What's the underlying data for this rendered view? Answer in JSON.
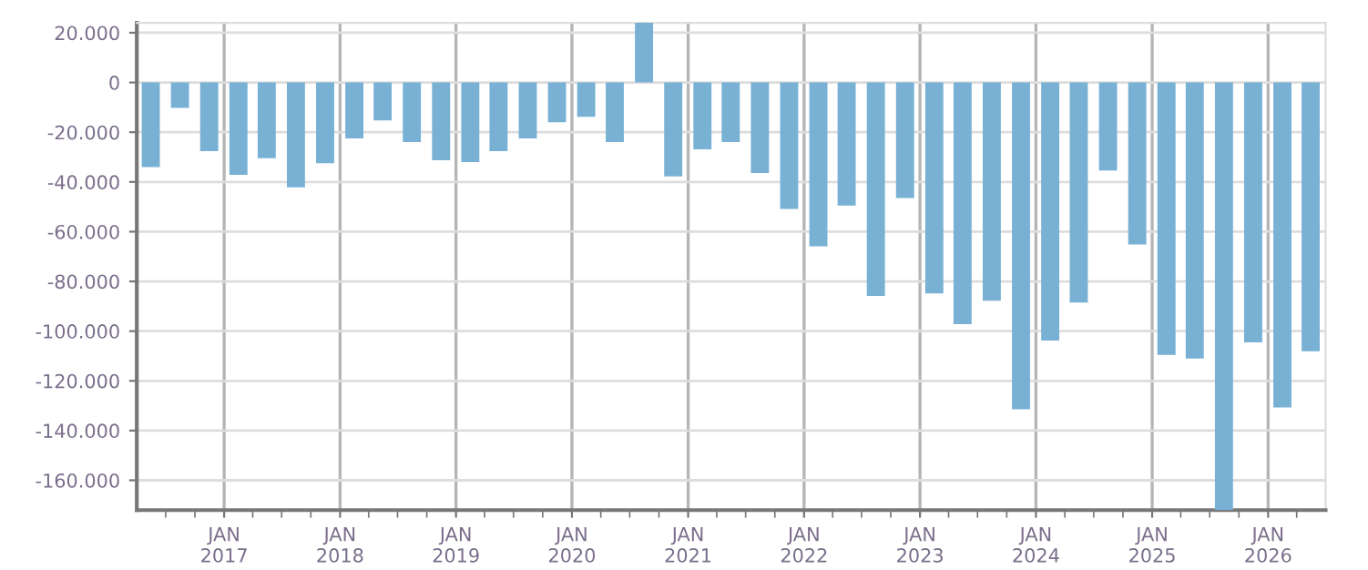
{
  "chart_data": {
    "type": "bar",
    "color": "#78b1d4",
    "x": [
      "2016-05-15",
      "2016-08-15",
      "2016-11-15",
      "2017-02-15",
      "2017-05-15",
      "2017-08-15",
      "2017-11-15",
      "2018-02-15",
      "2018-05-15",
      "2018-08-15",
      "2018-11-15",
      "2019-02-15",
      "2019-05-15",
      "2019-08-15",
      "2019-11-15",
      "2020-02-15",
      "2020-05-15",
      "2020-08-15",
      "2020-11-15",
      "2021-02-15",
      "2021-05-15",
      "2021-08-15",
      "2021-11-15",
      "2022-02-15",
      "2022-05-15",
      "2022-08-15",
      "2022-11-15",
      "2023-02-15",
      "2023-05-15",
      "2023-08-15",
      "2023-11-15",
      "2024-02-15",
      "2024-05-15",
      "2024-08-15",
      "2024-11-15",
      "2025-02-15",
      "2025-05-15",
      "2025-08-15",
      "2025-11-15",
      "2026-02-15",
      "2026-05-15"
    ],
    "values": [
      -34000,
      -10200,
      -27600,
      -37100,
      -30500,
      -42200,
      -32500,
      -22500,
      -15300,
      -24000,
      -31300,
      -32000,
      -27600,
      -22500,
      -16000,
      -13800,
      -24000,
      24000,
      -37800,
      -26900,
      -24000,
      -36400,
      -50900,
      -65900,
      -49500,
      -85800,
      -46500,
      -84800,
      -97200,
      -87800,
      -131400,
      -103800,
      -88500,
      -35400,
      -65200,
      -109600,
      -111000,
      -172000,
      -104500,
      -130700,
      -108100
    ],
    "xlim": [
      "2016-04-01",
      "2026-07-01"
    ],
    "xticks": [
      {
        "value": "2016-07-01",
        "label": null
      },
      {
        "value": "2016-10-01",
        "label": null
      },
      {
        "value": "2017-01-01",
        "label": "JAN\n2017"
      },
      {
        "value": "2017-04-01",
        "label": null
      },
      {
        "value": "2017-07-01",
        "label": null
      },
      {
        "value": "2017-10-01",
        "label": null
      },
      {
        "value": "2018-01-01",
        "label": "JAN\n2018"
      },
      {
        "value": "2018-04-01",
        "label": null
      },
      {
        "value": "2018-07-01",
        "label": null
      },
      {
        "value": "2018-10-01",
        "label": null
      },
      {
        "value": "2019-01-01",
        "label": "JAN\n2019"
      },
      {
        "value": "2019-04-01",
        "label": null
      },
      {
        "value": "2019-07-01",
        "label": null
      },
      {
        "value": "2019-10-01",
        "label": null
      },
      {
        "value": "2020-01-01",
        "label": "JAN\n2020"
      },
      {
        "value": "2020-04-01",
        "label": null
      },
      {
        "value": "2020-07-01",
        "label": null
      },
      {
        "value": "2020-10-01",
        "label": null
      },
      {
        "value": "2021-01-01",
        "label": "JAN\n2021"
      },
      {
        "value": "2021-04-01",
        "label": null
      },
      {
        "value": "2021-07-01",
        "label": null
      },
      {
        "value": "2021-10-01",
        "label": null
      },
      {
        "value": "2022-01-01",
        "label": "JAN\n2022"
      },
      {
        "value": "2022-04-01",
        "label": null
      },
      {
        "value": "2022-07-01",
        "label": null
      },
      {
        "value": "2022-10-01",
        "label": null
      },
      {
        "value": "2023-01-01",
        "label": "JAN\n2023"
      },
      {
        "value": "2023-04-01",
        "label": null
      },
      {
        "value": "2023-07-01",
        "label": null
      },
      {
        "value": "2023-10-01",
        "label": null
      },
      {
        "value": "2024-01-01",
        "label": "JAN\n2024"
      },
      {
        "value": "2024-04-01",
        "label": null
      },
      {
        "value": "2024-07-01",
        "label": null
      },
      {
        "value": "2024-10-01",
        "label": null
      },
      {
        "value": "2025-01-01",
        "label": "JAN\n2025"
      },
      {
        "value": "2025-04-01",
        "label": null
      },
      {
        "value": "2025-07-01",
        "label": null
      },
      {
        "value": "2025-10-01",
        "label": null
      },
      {
        "value": "2026-01-01",
        "label": "JAN\n2026"
      },
      {
        "value": "2026-04-01",
        "label": null
      }
    ],
    "ylim": [
      -172000,
      24000
    ],
    "yticks": [
      {
        "value": -160000,
        "label": "-160.000"
      },
      {
        "value": -140000,
        "label": "-140.000"
      },
      {
        "value": -120000,
        "label": "-120.000"
      },
      {
        "value": -100000,
        "label": "-100.000"
      },
      {
        "value": -80000,
        "label": "-80.000"
      },
      {
        "value": -60000,
        "label": "-60.000"
      },
      {
        "value": -40000,
        "label": "-40.000"
      },
      {
        "value": -20000,
        "label": "-20.000"
      },
      {
        "value": 0,
        "label": "0"
      },
      {
        "value": 20000,
        "label": "20.000"
      }
    ],
    "grid": true
  }
}
